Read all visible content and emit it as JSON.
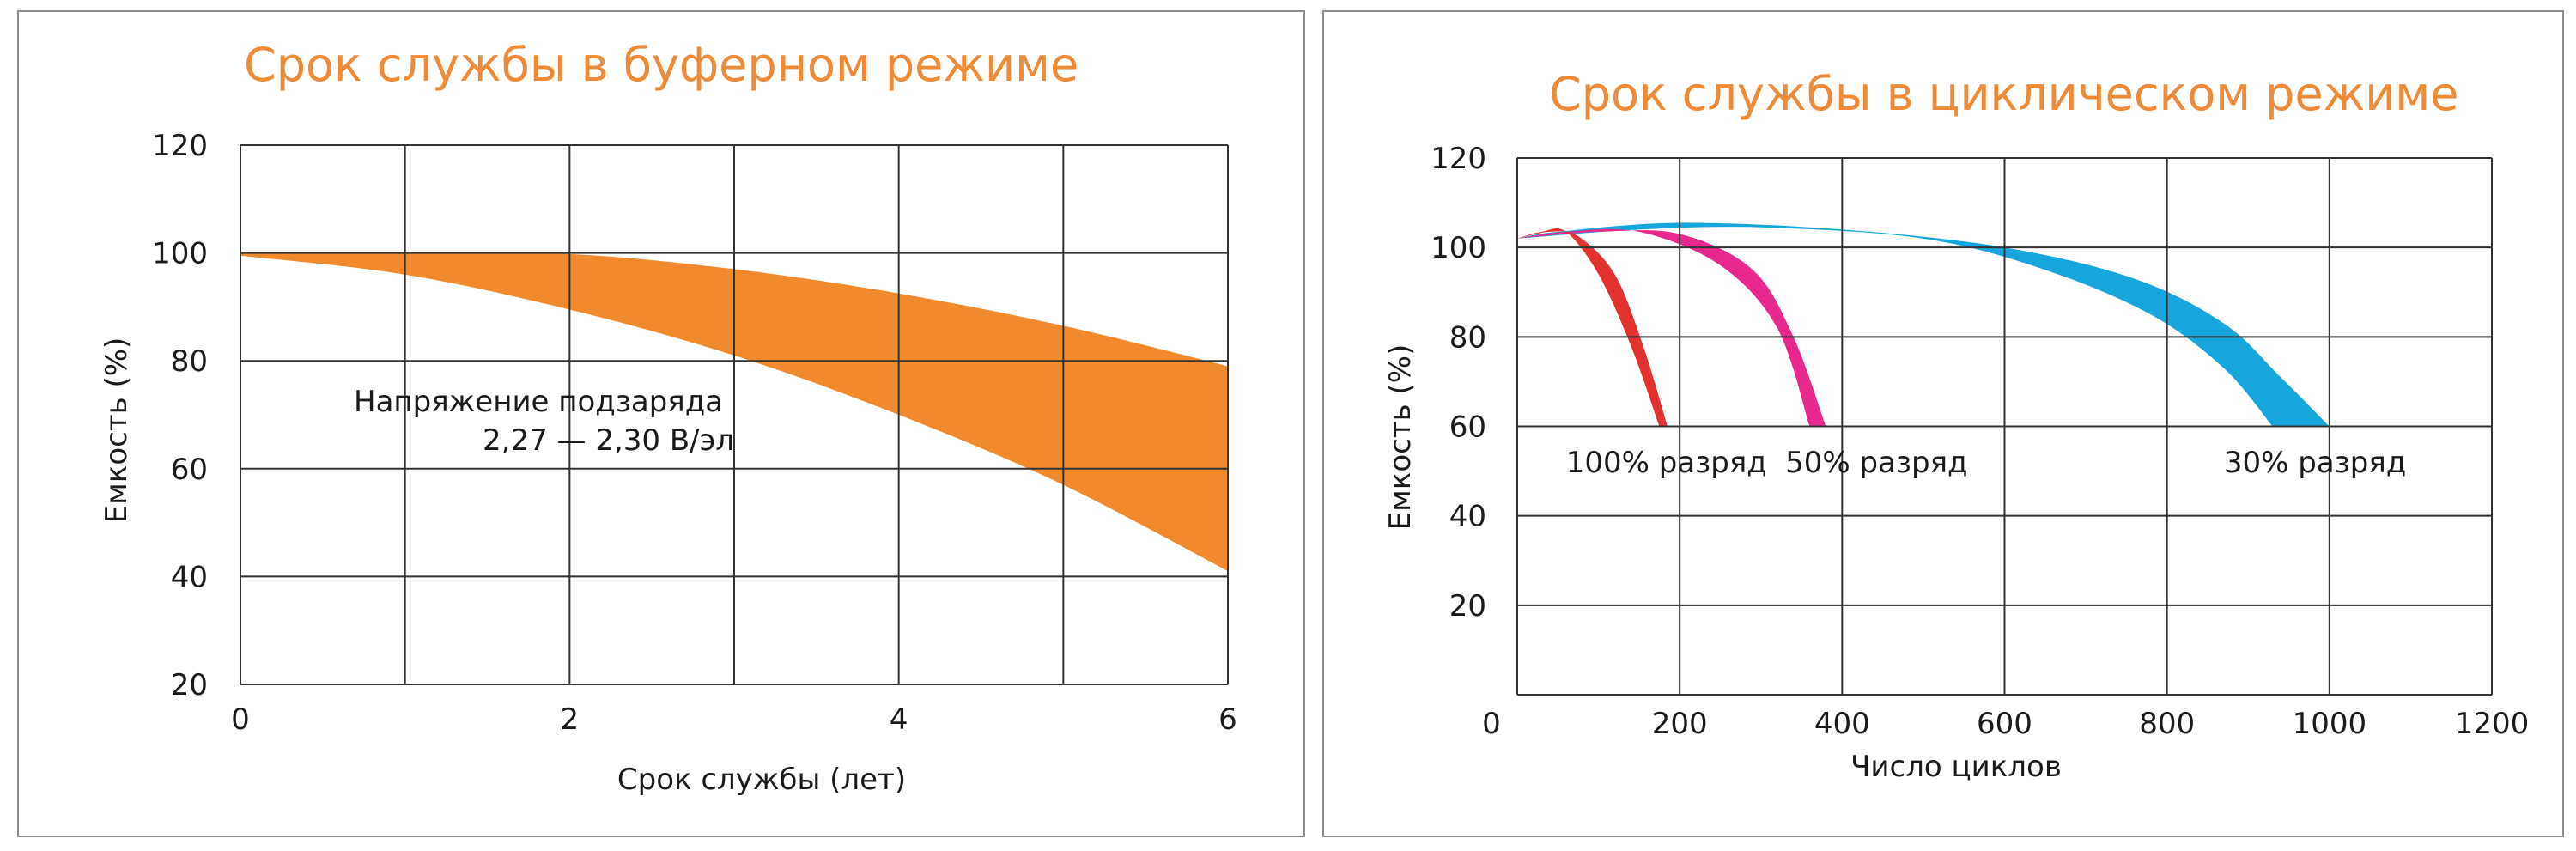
{
  "colors": {
    "title": "#ef8a36",
    "band_float": "#f08a2c",
    "band_100": "#e3322e",
    "band_50": "#e8288c",
    "band_30": "#16a6db",
    "grid": "#333333"
  },
  "chart_data": [
    {
      "type": "area",
      "title": "Срок службы в буферном режиме",
      "xlabel": "Срок службы (лет)",
      "ylabel": "Емкость (%)",
      "xlim": [
        0,
        6
      ],
      "ylim": [
        20,
        120
      ],
      "xticks": [
        "0",
        "2",
        "4",
        "6"
      ],
      "yticks": [
        "120",
        "100",
        "80",
        "60",
        "40",
        "20"
      ],
      "grid": true,
      "annotation_lines": [
        "Напряжение подзаряда",
        "2,27 — 2,30 В/эл"
      ],
      "series": [
        {
          "upper": [
            [
              0,
              100
            ],
            [
              1,
              100
            ],
            [
              2,
              99.8
            ],
            [
              3,
              97
            ],
            [
              4,
              92.5
            ],
            [
              5,
              86.5
            ],
            [
              6,
              79
            ]
          ],
          "lower": [
            [
              0,
              99.5
            ],
            [
              1,
              96
            ],
            [
              2,
              89.5
            ],
            [
              3,
              81
            ],
            [
              4,
              70
            ],
            [
              5,
              57
            ],
            [
              6,
              41
            ]
          ]
        }
      ]
    },
    {
      "type": "area",
      "title": "Срок службы в циклическом режиме",
      "xlabel": "Число циклов",
      "ylabel": "Емкость (%)",
      "xlim": [
        0,
        1200
      ],
      "ylim": [
        0,
        120
      ],
      "xticks": [
        "0",
        "200",
        "400",
        "600",
        "800",
        "1000",
        "1200"
      ],
      "yticks": [
        "120",
        "100",
        "80",
        "60",
        "40",
        "20"
      ],
      "grid": true,
      "series": [
        {
          "label": "100% разряд",
          "outer": [
            [
              0,
              102
            ],
            [
              30,
              103.5
            ],
            [
              60,
              103.5
            ],
            [
              100,
              94
            ],
            [
              140,
              78
            ],
            [
              175,
              60
            ]
          ],
          "inner": [
            [
              185,
              60
            ],
            [
              155,
              78
            ],
            [
              120,
              94
            ],
            [
              75,
              102.5
            ],
            [
              40,
              103.5
            ],
            [
              0,
              102
            ]
          ]
        },
        {
          "label": "50% разряд",
          "outer": [
            [
              0,
              102
            ],
            [
              60,
              103.5
            ],
            [
              150,
              103.5
            ],
            [
              250,
              96
            ],
            [
              320,
              82
            ],
            [
              360,
              60
            ]
          ],
          "inner": [
            [
              380,
              60
            ],
            [
              340,
              80
            ],
            [
              290,
              95
            ],
            [
              200,
              103
            ],
            [
              100,
              103.5
            ],
            [
              0,
              102
            ]
          ]
        },
        {
          "label": "30% разряд",
          "outer": [
            [
              0,
              102
            ],
            [
              150,
              104
            ],
            [
              300,
              104.5
            ],
            [
              500,
              102
            ],
            [
              650,
              95
            ],
            [
              780,
              85
            ],
            [
              870,
              73
            ],
            [
              930,
              60
            ]
          ],
          "inner": [
            [
              1000,
              60
            ],
            [
              940,
              71
            ],
            [
              870,
              83
            ],
            [
              760,
              93
            ],
            [
              600,
              100
            ],
            [
              400,
              104
            ],
            [
              200,
              105.5
            ],
            [
              50,
              103.5
            ],
            [
              0,
              102
            ]
          ]
        }
      ]
    }
  ]
}
